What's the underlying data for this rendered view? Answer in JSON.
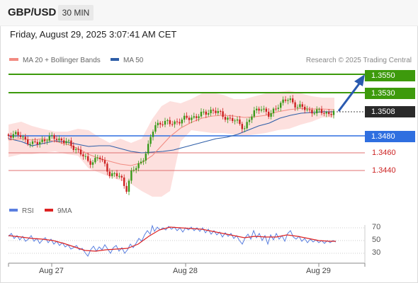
{
  "header": {
    "symbol": "GBP/USD",
    "timeframe": "30 MIN"
  },
  "datetime": "Friday, August 29, 2025 3:07:41 AM CET",
  "legend": {
    "ma20_label": "MA 20 + Bollinger Bands",
    "ma20_color": "#f28b82",
    "ma50_label": "MA 50",
    "ma50_color": "#2e5ea8"
  },
  "credit": "Research © 2025 Trading Central",
  "levels": {
    "r2": "1.3550",
    "r1": "1.3530",
    "current": "1.3508",
    "pivot": "1.3480",
    "s1": "1.3460",
    "s2": "1.3440"
  },
  "colors": {
    "resistance": "#3d9a0c",
    "pivot": "#2f6fe0",
    "support": "#e03030",
    "current": "#2a2a2a",
    "bull_candle": "#3a9a1a",
    "bear_candle": "#cc2222",
    "band_fill": "#fde0de",
    "arrow": "#2a5ab0",
    "rsi": "#5a7fe0",
    "rsi_ma": "#dd2222"
  },
  "rsi_legend": {
    "rsi_label": "RSI",
    "ma_label": "9MA"
  },
  "rsi_ticks": [
    "70",
    "50",
    "30"
  ],
  "x_axis": [
    "Aug 27",
    "Aug 28",
    "Aug 29"
  ]
}
